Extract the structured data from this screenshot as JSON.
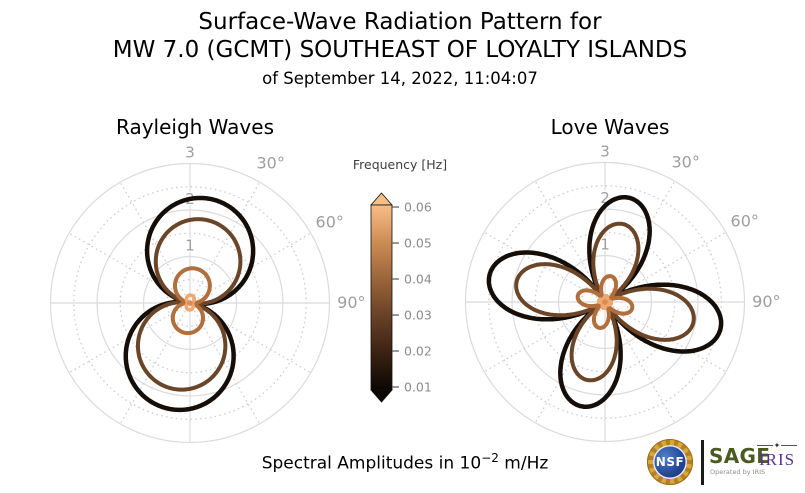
{
  "header": {
    "line1": "Surface-Wave Radiation Pattern for",
    "line2": "MW 7.0 (GCMT) SOUTHEAST OF LOYALTY ISLANDS",
    "line3": "of September 14, 2022, 11:04:07"
  },
  "caption": {
    "prefix": "Spectral Amplitudes in 10",
    "exponent": "−2",
    "suffix": " m/Hz"
  },
  "colorbar": {
    "label": "Frequency [Hz]",
    "unit": "Hz",
    "tick_labels": [
      "0.06",
      "0.05",
      "0.04",
      "0.03",
      "0.02",
      "0.01"
    ],
    "range_min": 0.01,
    "range_max": 0.06,
    "gradient_stops_bottom_to_top": [
      "#0b0603",
      "#3a2212",
      "#684126",
      "#9a653a",
      "#cc8d55",
      "#f8be88"
    ],
    "tick_color": "#8c8c8c"
  },
  "grid": {
    "r_max": 3,
    "radial_solid_circles": [
      1,
      2,
      3
    ],
    "radial_dotted_circles": [
      0.5,
      1.5,
      2.5
    ],
    "radial_tick_labels": [
      "1",
      "2",
      "3"
    ],
    "angle_tick_labels": [
      {
        "deg": 30,
        "label": "30°"
      },
      {
        "deg": 60,
        "label": "60°"
      },
      {
        "deg": 90,
        "label": "90°"
      }
    ],
    "spoke_step_deg": 30,
    "solid_line_color": "#dbdbdb",
    "dotted_line_color": "#cccccc",
    "label_color": "#9e9e9e"
  },
  "chart_data": [
    {
      "type": "polar_radiation",
      "title": "Rayleigh Waves",
      "pattern": "two-lobe",
      "r_axis_unit": "10^-2 m/Hz",
      "r_ticks": [
        1,
        2,
        3
      ],
      "theta_labels_deg": [
        30,
        60,
        90
      ],
      "series": [
        {
          "frequency_hz": 0.01,
          "color": "#150d07",
          "amp_top": 2.28,
          "amp_bottom": 2.32,
          "rotation_deg": 11,
          "line_width": 4.5
        },
        {
          "frequency_hz": 0.02,
          "color": "#6b4528",
          "amp_top": 1.82,
          "amp_bottom": 1.88,
          "rotation_deg": 11,
          "line_width": 4
        },
        {
          "frequency_hz": 0.04,
          "color": "#b06f3c",
          "amp_top": 0.75,
          "amp_bottom": 0.65,
          "rotation_deg": 8,
          "line_width": 4
        },
        {
          "frequency_hz": 0.06,
          "color": "#f0a873",
          "amp_top": 0.17,
          "amp_bottom": 0.15,
          "rotation_deg": 5,
          "line_width": 3.5
        }
      ],
      "center_dot_color": "#dd8a4e"
    },
    {
      "type": "polar_radiation",
      "title": "Love Waves",
      "pattern": "four-lobe",
      "r_axis_unit": "10^-2 m/Hz",
      "r_ticks": [
        1,
        2,
        3
      ],
      "theta_labels_deg": [
        30,
        60,
        90
      ],
      "series": [
        {
          "frequency_hz": 0.01,
          "color": "#150d07",
          "amp_a": 2.3,
          "amp_b": 2.55,
          "rotation_deg": -32,
          "line_width": 4.5
        },
        {
          "frequency_hz": 0.02,
          "color": "#6b4528",
          "amp_a": 1.72,
          "amp_b": 1.95,
          "rotation_deg": -32,
          "line_width": 4
        },
        {
          "frequency_hz": 0.04,
          "color": "#b06f3c",
          "amp_a": 0.57,
          "amp_b": 0.6,
          "rotation_deg": -32,
          "line_width": 4
        },
        {
          "frequency_hz": 0.06,
          "color": "#f0a873",
          "amp_a": 0.14,
          "amp_b": 0.14,
          "rotation_deg": -32,
          "line_width": 3.5
        }
      ],
      "center_dot_color": "#dd8a4e"
    }
  ],
  "logos": {
    "nsf_text": "NSF",
    "sage_text": "SAGE",
    "sage_subtext": "Operated by IRIS",
    "iris_text": "IRIS",
    "iris_star": "✦"
  }
}
